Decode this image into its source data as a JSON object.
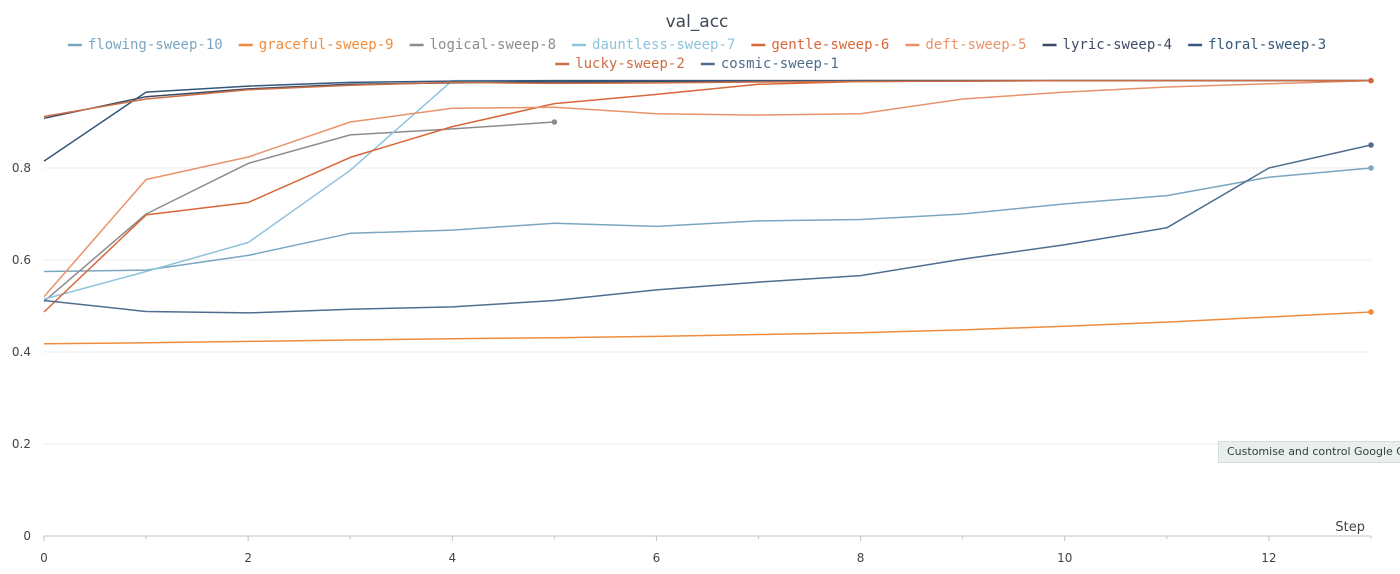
{
  "tooltip": "Customise and control Google Chrome",
  "chart_data": {
    "type": "line",
    "title": "val_acc",
    "xlabel": "Step",
    "ylabel": "",
    "xlim": [
      0,
      13
    ],
    "ylim": [
      0,
      1
    ],
    "x_ticks": [
      0,
      2,
      4,
      6,
      8,
      10,
      12
    ],
    "y_ticks": [
      0,
      0.2,
      0.4,
      0.6,
      0.8
    ],
    "grid": true,
    "legend_position": "top-center",
    "series": [
      {
        "name": "flowing-sweep-10",
        "color": "#7aa6c2",
        "endpoint": true,
        "x": [
          0,
          1,
          2,
          3,
          4,
          5,
          6,
          7,
          8,
          9,
          10,
          11,
          12,
          13
        ],
        "values": [
          0.575,
          0.578,
          0.61,
          0.658,
          0.665,
          0.68,
          0.673,
          0.685,
          0.688,
          0.7,
          0.722,
          0.74,
          0.78,
          0.8
        ]
      },
      {
        "name": "graceful-sweep-9",
        "color": "#f08c3c",
        "endpoint": true,
        "x": [
          0,
          1,
          2,
          3,
          4,
          5,
          6,
          7,
          8,
          9,
          10,
          11,
          12,
          13
        ],
        "values": [
          0.418,
          0.42,
          0.423,
          0.426,
          0.429,
          0.431,
          0.434,
          0.438,
          0.442,
          0.448,
          0.456,
          0.465,
          0.476,
          0.487
        ]
      },
      {
        "name": "logical-sweep-8",
        "color": "#8c8c8c",
        "endpoint": true,
        "x": [
          0,
          1,
          2,
          3,
          4,
          5
        ],
        "values": [
          0.51,
          0.7,
          0.81,
          0.872,
          0.885,
          0.9
        ]
      },
      {
        "name": "dauntless-sweep-7",
        "color": "#8ec3dc",
        "endpoint": false,
        "x": [
          0,
          1,
          2,
          3,
          4,
          5,
          6,
          7,
          8,
          9,
          10,
          11,
          12,
          13
        ],
        "values": [
          0.515,
          0.575,
          0.638,
          0.795,
          0.99,
          0.99,
          0.99,
          0.99,
          0.99,
          0.99,
          0.99,
          0.99,
          0.99,
          0.99
        ]
      },
      {
        "name": "gentle-sweep-6",
        "color": "#d9673a",
        "endpoint": true,
        "x": [
          0,
          1,
          2,
          3,
          4,
          5,
          6,
          7,
          8,
          9,
          10,
          11,
          12,
          13
        ],
        "values": [
          0.487,
          0.698,
          0.725,
          0.823,
          0.89,
          0.94,
          0.96,
          0.982,
          0.988,
          0.989,
          0.99,
          0.99,
          0.99,
          0.99
        ]
      },
      {
        "name": "deft-sweep-5",
        "color": "#e8936a",
        "endpoint": false,
        "x": [
          0,
          1,
          2,
          3,
          4,
          5,
          6,
          7,
          8,
          9,
          10,
          11,
          12,
          13
        ],
        "values": [
          0.52,
          0.775,
          0.824,
          0.9,
          0.93,
          0.932,
          0.918,
          0.915,
          0.918,
          0.95,
          0.965,
          0.976,
          0.983,
          0.99
        ]
      },
      {
        "name": "lyric-sweep-4",
        "color": "#3d4a66",
        "endpoint": false,
        "x": [
          0,
          1,
          2,
          3,
          4,
          5,
          6,
          7,
          8,
          9,
          10,
          11,
          12,
          13
        ],
        "values": [
          0.908,
          0.955,
          0.972,
          0.982,
          0.985,
          0.987,
          0.988,
          0.989,
          0.99,
          0.99,
          0.99,
          0.99,
          0.99,
          0.99
        ]
      },
      {
        "name": "floral-sweep-3",
        "color": "#34577a",
        "endpoint": false,
        "x": [
          0,
          1,
          2,
          3,
          4,
          5,
          6,
          7,
          8,
          9,
          10,
          11,
          12,
          13
        ],
        "values": [
          0.815,
          0.965,
          0.978,
          0.986,
          0.989,
          0.99,
          0.99,
          0.99,
          0.99,
          0.99,
          0.99,
          0.99,
          0.99,
          0.99
        ]
      },
      {
        "name": "lucky-sweep-2",
        "color": "#cc6e45",
        "endpoint": false,
        "x": [
          0,
          1,
          2,
          3,
          4,
          5,
          6,
          7,
          8,
          9,
          10,
          11,
          12,
          13
        ],
        "values": [
          0.912,
          0.95,
          0.97,
          0.98,
          0.986,
          0.984,
          0.985,
          0.987,
          0.988,
          0.989,
          0.99,
          0.99,
          0.99,
          0.99
        ]
      },
      {
        "name": "cosmic-sweep-1",
        "color": "#4f6d8e",
        "endpoint": true,
        "x": [
          0,
          1,
          2,
          3,
          4,
          5,
          6,
          7,
          8,
          9,
          10,
          11,
          12,
          13
        ],
        "values": [
          0.512,
          0.488,
          0.485,
          0.493,
          0.498,
          0.512,
          0.535,
          0.552,
          0.566,
          0.602,
          0.633,
          0.67,
          0.8,
          0.85
        ]
      }
    ]
  }
}
